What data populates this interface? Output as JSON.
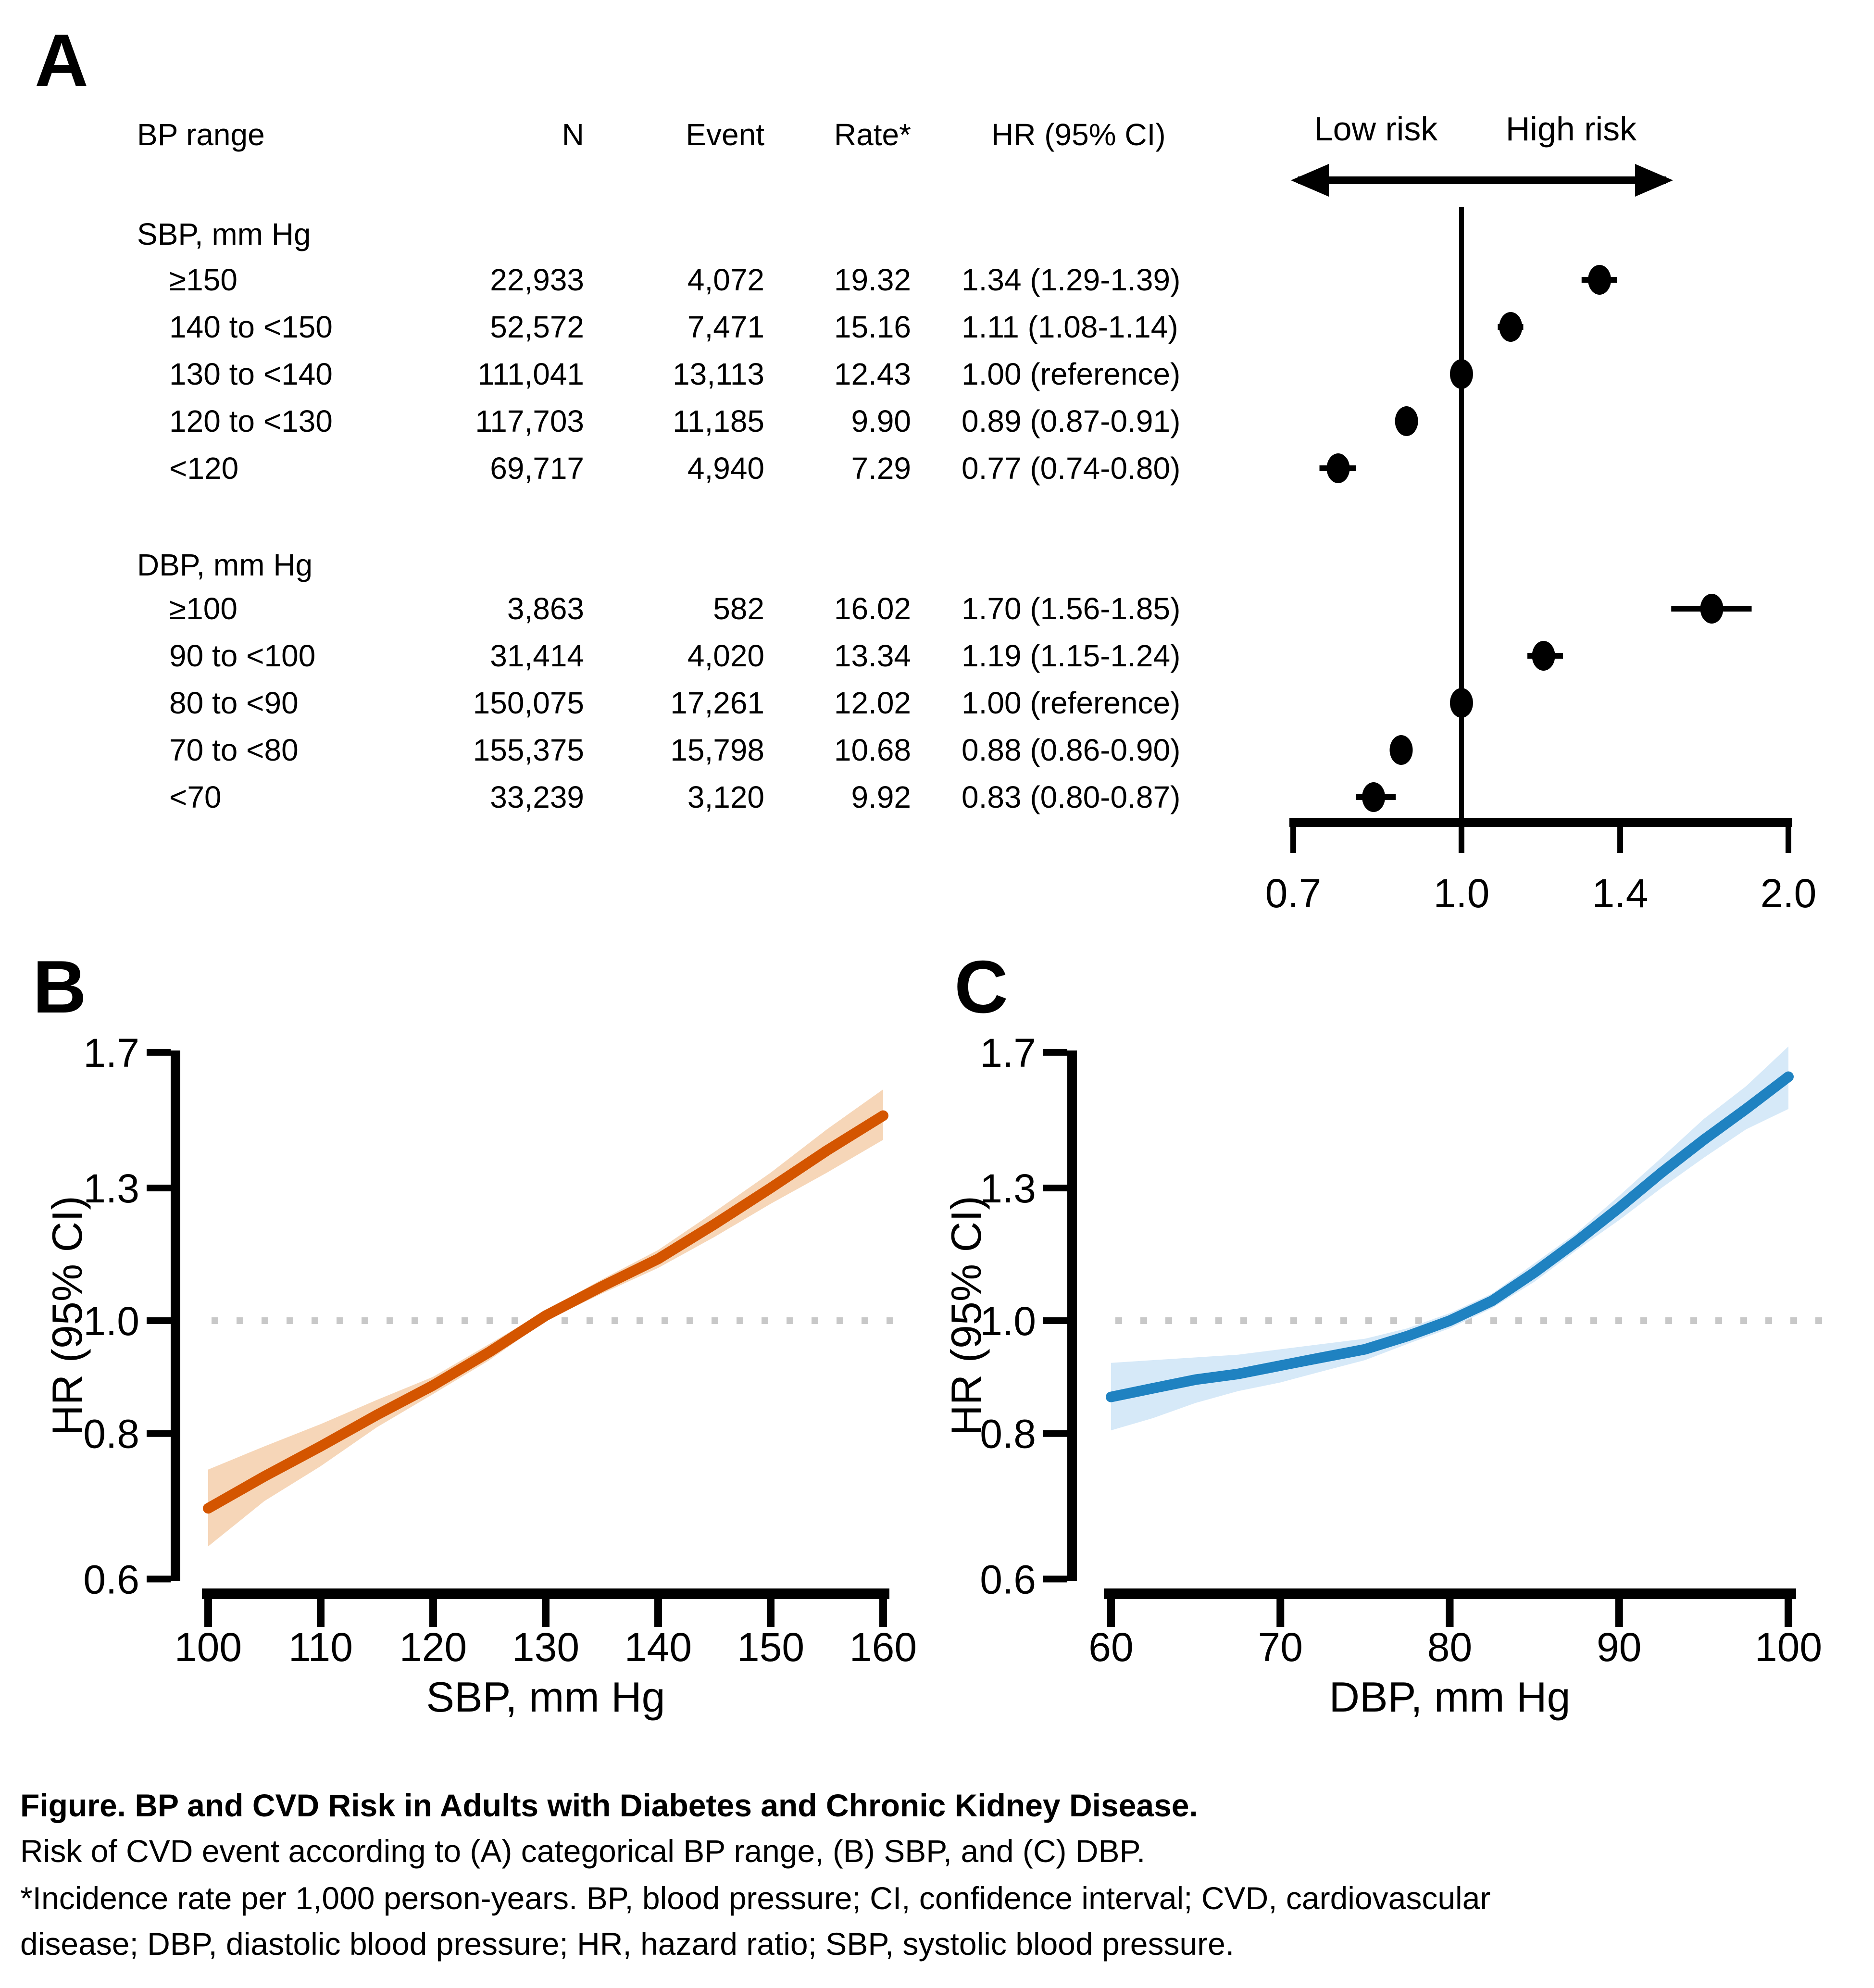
{
  "chart_data": [
    {
      "id": "panel_a_forest",
      "type": "table",
      "panel_label": "A",
      "columns": [
        "BP range",
        "N",
        "Event",
        "Rate*",
        "HR (95% CI)"
      ],
      "risk_low": "Low risk",
      "risk_high": "High risk",
      "axis": {
        "scale": "log",
        "min": 0.7,
        "max": 2.0,
        "ref_line": 1.0,
        "ticks": [
          0.7,
          1.0,
          1.4,
          2.0
        ],
        "tick_labels": [
          "0.7",
          "1.0",
          "1.4",
          "2.0"
        ]
      },
      "sections": [
        {
          "heading": "SBP, mm Hg",
          "rows": [
            {
              "range": "≥150",
              "n": "22,933",
              "event": "4,072",
              "rate": "19.32",
              "hr_text": "1.34 (1.29-1.39)",
              "hr": 1.34,
              "ci": [
                1.29,
                1.39
              ]
            },
            {
              "range": "140 to <150",
              "n": "52,572",
              "event": "7,471",
              "rate": "15.16",
              "hr_text": "1.11 (1.08-1.14)",
              "hr": 1.11,
              "ci": [
                1.08,
                1.14
              ]
            },
            {
              "range": "130 to <140",
              "n": "111,041",
              "event": "13,113",
              "rate": "12.43",
              "hr_text": "1.00 (reference)",
              "hr": 1.0,
              "ci": [
                1.0,
                1.0
              ]
            },
            {
              "range": "120 to <130",
              "n": "117,703",
              "event": "11,185",
              "rate": "9.90",
              "hr_text": "0.89 (0.87-0.91)",
              "hr": 0.89,
              "ci": [
                0.87,
                0.91
              ]
            },
            {
              "range": "<120",
              "n": "69,717",
              "event": "4,940",
              "rate": "7.29",
              "hr_text": "0.77 (0.74-0.80)",
              "hr": 0.77,
              "ci": [
                0.74,
                0.8
              ]
            }
          ]
        },
        {
          "heading": "DBP, mm Hg",
          "rows": [
            {
              "range": "≥100",
              "n": "3,863",
              "event": "582",
              "rate": "16.02",
              "hr_text": "1.70 (1.56-1.85)",
              "hr": 1.7,
              "ci": [
                1.56,
                1.85
              ]
            },
            {
              "range": "90 to <100",
              "n": "31,414",
              "event": "4,020",
              "rate": "13.34",
              "hr_text": "1.19 (1.15-1.24)",
              "hr": 1.19,
              "ci": [
                1.15,
                1.24
              ]
            },
            {
              "range": "80 to <90",
              "n": "150,075",
              "event": "17,261",
              "rate": "12.02",
              "hr_text": "1.00 (reference)",
              "hr": 1.0,
              "ci": [
                1.0,
                1.0
              ]
            },
            {
              "range": "70 to <80",
              "n": "155,375",
              "event": "15,798",
              "rate": "10.68",
              "hr_text": "0.88 (0.86-0.90)",
              "hr": 0.88,
              "ci": [
                0.86,
                0.9
              ]
            },
            {
              "range": "<70",
              "n": "33,239",
              "event": "3,120",
              "rate": "9.92",
              "hr_text": "0.83 (0.80-0.87)",
              "hr": 0.83,
              "ci": [
                0.8,
                0.87
              ]
            }
          ]
        }
      ]
    },
    {
      "id": "panel_b_sbp",
      "type": "line",
      "panel_label": "B",
      "xlabel": "SBP, mm Hg",
      "ylabel": "HR (95% CI)",
      "yscale": "log",
      "xlim": [
        100,
        160
      ],
      "ylim": [
        0.6,
        1.7
      ],
      "ref_line": 1.0,
      "xticks": [
        100,
        110,
        120,
        130,
        140,
        150,
        160
      ],
      "ytick_labels": [
        "0.6",
        "0.8",
        "1.0",
        "1.3",
        "1.7"
      ],
      "yticks": [
        0.6,
        0.8,
        1.0,
        1.3,
        1.7
      ],
      "line_color": "#d45500",
      "band_color": "#f6d6b8",
      "ref_color": "#c8c8c8",
      "x": [
        100,
        105,
        110,
        115,
        120,
        125,
        130,
        135,
        140,
        145,
        150,
        155,
        160
      ],
      "y": [
        0.69,
        0.735,
        0.78,
        0.83,
        0.88,
        0.94,
        1.01,
        1.07,
        1.13,
        1.21,
        1.3,
        1.4,
        1.5
      ],
      "lo": [
        0.64,
        0.7,
        0.75,
        0.81,
        0.865,
        0.925,
        1.0,
        1.055,
        1.11,
        1.18,
        1.26,
        1.34,
        1.43
      ],
      "hi": [
        0.745,
        0.78,
        0.815,
        0.855,
        0.895,
        0.955,
        1.02,
        1.085,
        1.15,
        1.24,
        1.34,
        1.46,
        1.58
      ]
    },
    {
      "id": "panel_c_dbp",
      "type": "line",
      "panel_label": "C",
      "xlabel": "DBP, mm Hg",
      "ylabel": "HR (95% CI)",
      "yscale": "log",
      "xlim": [
        60,
        100
      ],
      "ylim": [
        0.6,
        1.7
      ],
      "ref_line": 1.0,
      "xticks": [
        60,
        70,
        80,
        90,
        100
      ],
      "ytick_labels": [
        "0.6",
        "0.8",
        "1.0",
        "1.3",
        "1.7"
      ],
      "yticks": [
        0.6,
        0.8,
        1.0,
        1.3,
        1.7
      ],
      "line_color": "#1f82c1",
      "band_color": "#d6e9f8",
      "ref_color": "#c8c8c8",
      "x": [
        60,
        62.5,
        65,
        67.5,
        70,
        72.5,
        75,
        77.5,
        80,
        82.5,
        85,
        87.5,
        90,
        92.5,
        95,
        97.5,
        100
      ],
      "y": [
        0.86,
        0.875,
        0.89,
        0.9,
        0.915,
        0.93,
        0.945,
        0.97,
        1.0,
        1.04,
        1.1,
        1.17,
        1.25,
        1.34,
        1.43,
        1.52,
        1.62
      ],
      "lo": [
        0.805,
        0.825,
        0.85,
        0.87,
        0.885,
        0.905,
        0.925,
        0.955,
        0.985,
        1.025,
        1.08,
        1.15,
        1.22,
        1.3,
        1.38,
        1.46,
        1.52
      ],
      "hi": [
        0.92,
        0.925,
        0.93,
        0.935,
        0.945,
        0.955,
        0.965,
        0.985,
        1.015,
        1.055,
        1.12,
        1.19,
        1.28,
        1.38,
        1.49,
        1.59,
        1.72
      ]
    }
  ],
  "caption": {
    "title": "Figure. BP and CVD Risk in Adults with Diabetes and Chronic Kidney Disease.",
    "line2": "Risk of CVD event according to (A) categorical BP range, (B) SBP, and (C) DBP.",
    "line3": "*Incidence rate per 1,000 person-years. BP, blood pressure; CI, confidence interval; CVD, cardiovascular",
    "line4": "disease; DBP, diastolic blood pressure; HR, hazard ratio; SBP, systolic blood pressure."
  }
}
